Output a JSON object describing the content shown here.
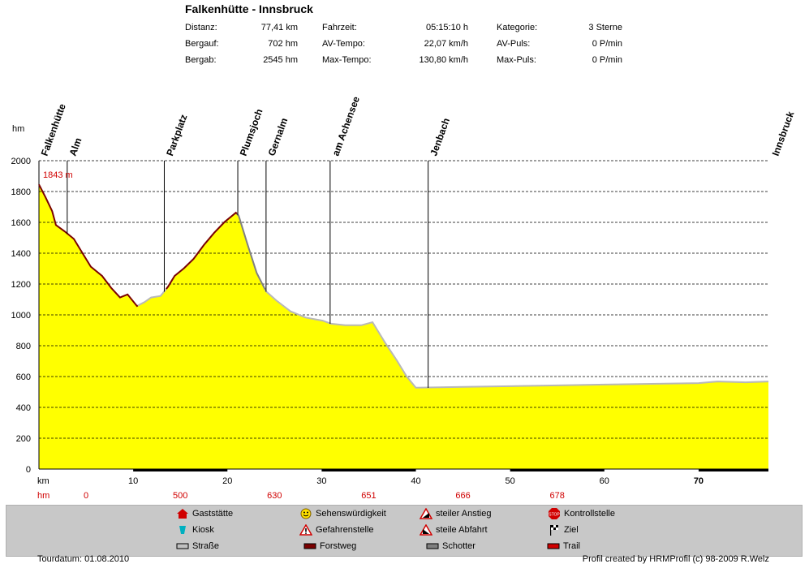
{
  "header": {
    "title": "Falkenhütte - Innsbruck",
    "stats": [
      [
        {
          "label": "Distanz:",
          "value": "77,41 km"
        },
        {
          "label": "Fahrzeit:",
          "value": "05:15:10 h"
        },
        {
          "label": "Kategorie:",
          "value": "3 Sterne"
        }
      ],
      [
        {
          "label": "Bergauf:",
          "value": "702 hm"
        },
        {
          "label": "AV-Tempo:",
          "value": "22,07 km/h"
        },
        {
          "label": "AV-Puls:",
          "value": "0 P/min"
        }
      ],
      [
        {
          "label": "Bergab:",
          "value": "2545 hm"
        },
        {
          "label": "Max-Tempo:",
          "value": "130,80 km/h"
        },
        {
          "label": "Max-Puls:",
          "value": "0 P/min"
        }
      ]
    ]
  },
  "chart_data": {
    "type": "area",
    "title": "Falkenhütte - Innsbruck",
    "ylabel": "hm",
    "xlabel": "km",
    "ylim": [
      0,
      2000
    ],
    "xlim": [
      0,
      77.41
    ],
    "yticks": [
      0,
      200,
      400,
      600,
      800,
      1000,
      1200,
      1400,
      1600,
      1800,
      2000
    ],
    "xticks": [
      10,
      20,
      30,
      40,
      50,
      60,
      70
    ],
    "profile": {
      "x": [
        0,
        0.7,
        1.4,
        1.8,
        2.7,
        3.7,
        4.6,
        5.5,
        6.7,
        7.7,
        8.6,
        9.4,
        10.4,
        11.2,
        11.9,
        12.9,
        13.7,
        14.4,
        15.4,
        16.4,
        17.5,
        18.6,
        19.7,
        20.9,
        21.2,
        22.1,
        23.1,
        24.1,
        25.2,
        26.7,
        28.3,
        30.1,
        31.0,
        32.5,
        34.2,
        35.4,
        35.9,
        36.7,
        38.0,
        39.0,
        40.0,
        45,
        50,
        55,
        60,
        65,
        70,
        72,
        75,
        77.41
      ],
      "y": [
        1843,
        1760,
        1670,
        1580,
        1540,
        1490,
        1400,
        1310,
        1250,
        1170,
        1110,
        1130,
        1055,
        1080,
        1110,
        1120,
        1180,
        1250,
        1300,
        1360,
        1450,
        1530,
        1600,
        1660,
        1640,
        1460,
        1270,
        1150,
        1090,
        1020,
        980,
        960,
        940,
        930,
        930,
        950,
        900,
        820,
        700,
        600,
        525,
        530,
        535,
        540,
        545,
        550,
        555,
        565,
        560,
        565
      ]
    },
    "waypoints": [
      {
        "name": "Falkenhütte",
        "km": 0
      },
      {
        "name": "Alm",
        "km": 3.0
      },
      {
        "name": "Parkplatz",
        "km": 13.3
      },
      {
        "name": "Plumsjoch",
        "km": 21.1
      },
      {
        "name": "Gernalm",
        "km": 24.1
      },
      {
        "name": "am Achensee",
        "km": 30.9
      },
      {
        "name": "Jenbach",
        "km": 41.3
      },
      {
        "name": "Innsbruck",
        "km": 77.41
      }
    ],
    "surface_segments": [
      {
        "type": "Forstweg",
        "from": 0,
        "to": 10.5
      },
      {
        "type": "Straße",
        "from": 10.5,
        "to": 21.0
      },
      {
        "type": "Forstweg",
        "from": 13.5,
        "to": 21.0
      },
      {
        "type": "Schotter",
        "from": 21.0,
        "to": 24.0
      },
      {
        "type": "Straße",
        "from": 24.0,
        "to": 77.41
      }
    ],
    "start_label": "1843 m",
    "bottom_bar_segments": [
      [
        10,
        20
      ],
      [
        30,
        40
      ],
      [
        50,
        60
      ],
      [
        70,
        77.41
      ]
    ],
    "hm_row": [
      {
        "km": "km",
        "hm": "hm"
      },
      {
        "km": "10",
        "hm": "0"
      },
      {
        "km": "20",
        "hm": "500"
      },
      {
        "km": "30",
        "hm": "630"
      },
      {
        "km": "40",
        "hm": "651"
      },
      {
        "km": "50",
        "hm": "666"
      },
      {
        "km": "60",
        "hm": "678"
      },
      {
        "km": "70",
        "hm": ""
      }
    ],
    "colors": {
      "fill": "#ffff00",
      "forstweg": "#7a0000",
      "strasse": "#b8b8b8",
      "schotter": "#808080",
      "grid": "#000000",
      "hm": "#d00000"
    }
  },
  "legend": {
    "items": [
      {
        "icon": "house-icon",
        "label": "Gaststätte"
      },
      {
        "icon": "smiley-icon",
        "label": "Sehenswürdigkeit"
      },
      {
        "icon": "steep-up-icon",
        "label": "steiler Anstieg"
      },
      {
        "icon": "stop-icon",
        "label": "Kontrollstelle"
      },
      {
        "icon": "kiosk-icon",
        "label": "Kiosk"
      },
      {
        "icon": "warning-icon",
        "label": "Gefahrenstelle"
      },
      {
        "icon": "steep-down-icon",
        "label": "steile Abfahrt"
      },
      {
        "icon": "finish-flag-icon",
        "label": "Ziel"
      },
      {
        "icon": "road-swatch-icon",
        "label": "Straße"
      },
      {
        "icon": "forest-road-swatch-icon",
        "label": "Forstweg"
      },
      {
        "icon": "gravel-swatch-icon",
        "label": "Schotter"
      },
      {
        "icon": "trail-swatch-icon",
        "label": "Trail"
      }
    ]
  },
  "footer": {
    "date": "Tourdatum: 01.08.2010",
    "credit": "Profil created by HRMProfil (c) 98-2009 R.Welz"
  }
}
